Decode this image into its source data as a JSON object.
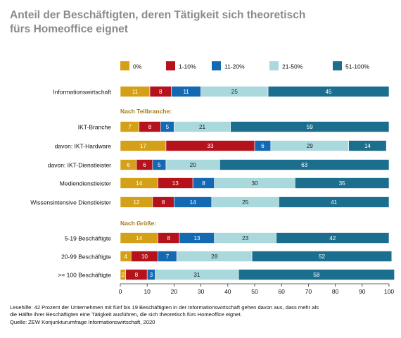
{
  "title": {
    "line1": "Anteil der Beschäftigten, deren Tätigkeit sich theoretisch",
    "line2": "fürs Homeoffice eignet"
  },
  "colors": {
    "title": "#8a8a8a",
    "group_label": "#a07a1c",
    "axis": "#333333",
    "segment_text_dark": "#222222",
    "segment_text_light": "#ffffff"
  },
  "footnote": {
    "line1": "Lesehilfe: 42 Prozent der Unternehmen mit fünf bis 19 Beschäftigten in der Informationswirtschaft gehen davon aus, dass mehr als",
    "line2": "die Hälfte ihrer Beschäftigten eine Tätigkeit ausführen, die sich theoretisch fürs Homeoffice eignet.",
    "line3": "Quelle: ZEW Konjunkturumfrage Informationswirtschaft, 2020"
  },
  "chart_data": {
    "type": "bar",
    "orientation": "horizontal",
    "stacked": true,
    "xlim": [
      0,
      100
    ],
    "xticks": [
      0,
      10,
      20,
      30,
      40,
      50,
      60,
      70,
      80,
      90,
      100
    ],
    "legend_position": "top",
    "grid": false,
    "series": [
      {
        "name": "0%",
        "color": "#d4a017",
        "text": "light"
      },
      {
        "name": "1-10%",
        "color": "#b5121b",
        "text": "light"
      },
      {
        "name": "11-20%",
        "color": "#1469b3",
        "text": "light"
      },
      {
        "name": "21-50%",
        "color": "#a9d8dd",
        "text": "dark"
      },
      {
        "name": "51-100%",
        "color": "#1c6e8f",
        "text": "light"
      }
    ],
    "rows": [
      {
        "kind": "bar",
        "label": "Informationswirtschaft",
        "values": [
          11,
          8,
          11,
          25,
          45
        ]
      },
      {
        "kind": "group",
        "label": "Nach Teilbranche:"
      },
      {
        "kind": "bar",
        "label": "IKT-Branche",
        "values": [
          7,
          8,
          5,
          21,
          59
        ]
      },
      {
        "kind": "bar",
        "label": "davon: IKT-Hardware",
        "values": [
          17,
          33,
          6,
          29,
          14
        ]
      },
      {
        "kind": "bar",
        "label": "davon: IKT-Dienstleister",
        "values": [
          6,
          6,
          5,
          20,
          63
        ]
      },
      {
        "kind": "bar",
        "label": "Mediendienstleister",
        "values": [
          14,
          13,
          8,
          30,
          35
        ]
      },
      {
        "kind": "bar",
        "label": "Wissensintensive Dienstleister",
        "values": [
          12,
          8,
          14,
          25,
          41
        ]
      },
      {
        "kind": "group",
        "label": "Nach Größe:"
      },
      {
        "kind": "bar",
        "label": "5-19 Beschäftigte",
        "values": [
          14,
          8,
          13,
          23,
          42
        ]
      },
      {
        "kind": "bar",
        "label": "20-99 Beschäftigte",
        "values": [
          4,
          10,
          7,
          28,
          52
        ]
      },
      {
        "kind": "bar",
        "label": ">= 100 Beschäftigte",
        "values": [
          2,
          8,
          3,
          31,
          58
        ]
      }
    ]
  }
}
